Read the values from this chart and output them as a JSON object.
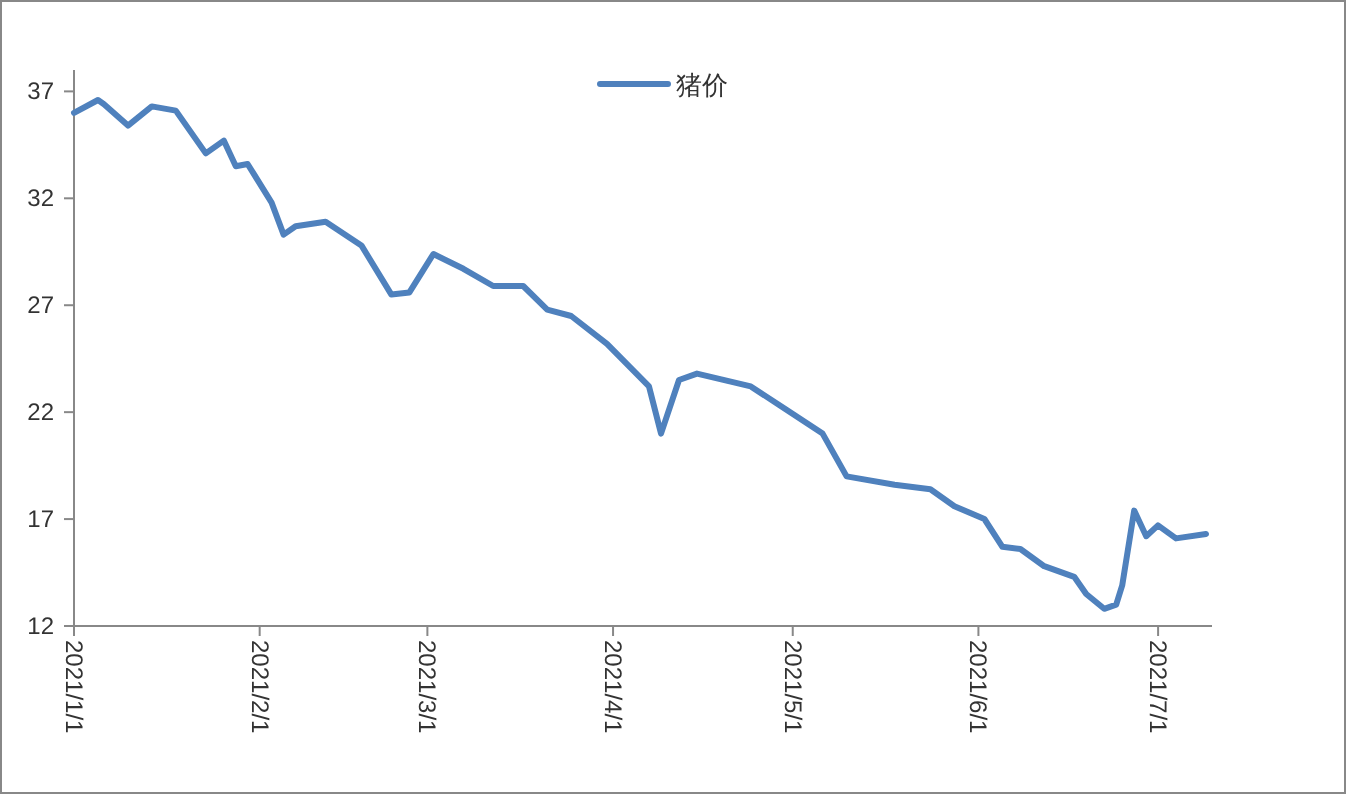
{
  "chart_data": {
    "type": "line",
    "legend": "top",
    "x": [
      "2021-01-01",
      "2021-01-05",
      "2021-01-06",
      "2021-01-10",
      "2021-01-14",
      "2021-01-18",
      "2021-01-23",
      "2021-01-26",
      "2021-01-28",
      "2021-01-30",
      "2021-02-03",
      "2021-02-05",
      "2021-02-07",
      "2021-02-12",
      "2021-02-18",
      "2021-02-23",
      "2021-02-26",
      "2021-03-02",
      "2021-03-07",
      "2021-03-12",
      "2021-03-17",
      "2021-03-21",
      "2021-03-25",
      "2021-03-31",
      "2021-04-07",
      "2021-04-09",
      "2021-04-12",
      "2021-04-15",
      "2021-04-24",
      "2021-04-30",
      "2021-05-06",
      "2021-05-10",
      "2021-05-18",
      "2021-05-24",
      "2021-05-28",
      "2021-06-02",
      "2021-06-05",
      "2021-06-08",
      "2021-06-12",
      "2021-06-17",
      "2021-06-19",
      "2021-06-22",
      "2021-06-24",
      "2021-06-25",
      "2021-06-27",
      "2021-06-29",
      "2021-07-01",
      "2021-07-04",
      "2021-07-09"
    ],
    "series": [
      {
        "name": "猪价",
        "color": "#4f81bd",
        "values": [
          36.0,
          36.6,
          36.4,
          35.4,
          36.3,
          36.1,
          34.1,
          34.7,
          33.5,
          33.6,
          31.8,
          30.3,
          30.7,
          30.9,
          29.8,
          27.5,
          27.6,
          29.4,
          28.7,
          27.9,
          27.9,
          26.8,
          26.5,
          25.2,
          23.2,
          21.0,
          23.5,
          23.8,
          23.2,
          22.1,
          21.0,
          19.0,
          18.6,
          18.4,
          17.6,
          17.0,
          15.7,
          15.6,
          14.8,
          14.3,
          13.5,
          12.8,
          13.0,
          13.9,
          17.4,
          16.2,
          16.7,
          16.1,
          16.3
        ]
      }
    ],
    "xlim": [
      "2021-01-01",
      "2021-07-10"
    ],
    "xticks": [
      {
        "value": "2021-01-01",
        "label": "2021/1/1"
      },
      {
        "value": "2021-02-01",
        "label": "2021/2/1"
      },
      {
        "value": "2021-03-01",
        "label": "2021/3/1"
      },
      {
        "value": "2021-04-01",
        "label": "2021/4/1"
      },
      {
        "value": "2021-05-01",
        "label": "2021/5/1"
      },
      {
        "value": "2021-06-01",
        "label": "2021/6/1"
      },
      {
        "value": "2021-07-01",
        "label": "2021/7/1"
      }
    ],
    "ylim": [
      12,
      38
    ],
    "yticks": [
      12,
      17,
      22,
      27,
      32,
      37
    ],
    "grid": false,
    "marker": "none",
    "line_style": "solid"
  }
}
